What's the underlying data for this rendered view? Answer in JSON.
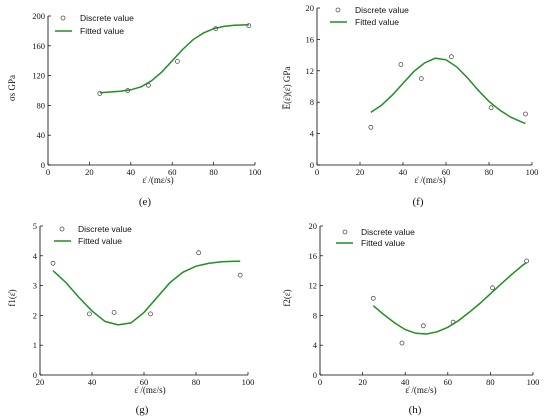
{
  "figure": {
    "panels": [
      {
        "id": "e",
        "label": "(e)"
      },
      {
        "id": "f",
        "label": "(f)"
      },
      {
        "id": "g",
        "label": "(g)"
      },
      {
        "id": "h",
        "label": "(h)"
      }
    ]
  },
  "colors": {
    "fit": "#1f8f1f",
    "marker": "#555555",
    "axis": "#000000",
    "background": "#ffffff"
  },
  "chart_data": [
    {
      "panel": "(e)",
      "type": "scatter",
      "xlabel": "ε̇ /(mε/s)",
      "ylabel": "σs GPa",
      "xlim": [
        0,
        100
      ],
      "ylim": [
        0,
        200
      ],
      "xticks": [
        0,
        20,
        40,
        60,
        80,
        100
      ],
      "yticks": [
        0,
        40,
        80,
        120,
        160,
        200
      ],
      "legend": [
        "Discrete value",
        "Fitted value"
      ],
      "legend_position": "top-left",
      "grid": false,
      "series": [
        {
          "name": "Discrete value",
          "type": "scatter",
          "x": [
            25,
            38.5,
            48.5,
            62.5,
            81,
            97
          ],
          "y": [
            96,
            100,
            107,
            139,
            183,
            187
          ]
        },
        {
          "name": "Fitted value",
          "type": "line",
          "x": [
            25,
            30,
            35,
            40,
            45,
            50,
            55,
            60,
            65,
            70,
            75,
            80,
            85,
            90,
            95,
            97
          ],
          "y": [
            97,
            98,
            99,
            101,
            105,
            113,
            125,
            140,
            155,
            168,
            177,
            183,
            186,
            187.5,
            188,
            188
          ]
        }
      ]
    },
    {
      "panel": "(f)",
      "type": "scatter",
      "xlabel": "ε̇ /(mε/s)",
      "ylabel": "E̅(ε̇)(ε̇) GPa",
      "xlim": [
        0,
        100
      ],
      "ylim": [
        0,
        20
      ],
      "xticks": [
        0,
        20,
        40,
        60,
        80,
        100
      ],
      "yticks": [
        0,
        4,
        8,
        12,
        16,
        20
      ],
      "legend": [
        "Discrete value",
        "Fitted value"
      ],
      "legend_position": "top-left",
      "grid": false,
      "series": [
        {
          "name": "Discrete value",
          "type": "scatter",
          "x": [
            25,
            39,
            48.5,
            62.5,
            81,
            97
          ],
          "y": [
            4.8,
            12.8,
            11,
            13.8,
            7.3,
            6.5
          ]
        },
        {
          "name": "Fitted value",
          "type": "line",
          "x": [
            25,
            30,
            35,
            40,
            45,
            50,
            55,
            60,
            65,
            70,
            75,
            80,
            85,
            90,
            95,
            97
          ],
          "y": [
            6.7,
            7.6,
            8.9,
            10.4,
            11.9,
            13.0,
            13.6,
            13.4,
            12.5,
            11.1,
            9.5,
            8.1,
            7.0,
            6.1,
            5.5,
            5.3
          ]
        }
      ]
    },
    {
      "panel": "(g)",
      "type": "scatter",
      "xlabel": "ε̇ /(mε/s)",
      "ylabel": "f1(ε̇)",
      "xlim": [
        20,
        100
      ],
      "ylim": [
        0,
        5
      ],
      "xticks": [
        20,
        40,
        60,
        80,
        100
      ],
      "yticks": [
        0,
        1,
        2,
        3,
        4,
        5
      ],
      "legend": [
        "Discrete value",
        "Fitted value"
      ],
      "legend_position": "top-left",
      "grid": false,
      "series": [
        {
          "name": "Discrete value",
          "type": "scatter",
          "x": [
            25,
            39,
            48.5,
            62.5,
            81,
            97
          ],
          "y": [
            3.75,
            2.05,
            2.1,
            2.05,
            4.1,
            3.35
          ]
        },
        {
          "name": "Fitted value",
          "type": "line",
          "x": [
            25,
            30,
            35,
            40,
            45,
            50,
            55,
            60,
            65,
            70,
            75,
            80,
            85,
            90,
            95,
            97
          ],
          "y": [
            3.5,
            3.1,
            2.6,
            2.15,
            1.8,
            1.68,
            1.75,
            2.1,
            2.6,
            3.1,
            3.45,
            3.65,
            3.75,
            3.8,
            3.82,
            3.82
          ]
        }
      ]
    },
    {
      "panel": "(h)",
      "type": "scatter",
      "xlabel": "ε̇ /(mε/s)",
      "ylabel": "f2(ε̇)",
      "xlim": [
        0,
        100
      ],
      "ylim": [
        0,
        20
      ],
      "xticks": [
        0,
        20,
        40,
        60,
        80,
        100
      ],
      "yticks": [
        0,
        4,
        8,
        12,
        16,
        20
      ],
      "legend": [
        "Discrete value",
        "Fitted value"
      ],
      "legend_position": "top-left",
      "grid": false,
      "series": [
        {
          "name": "Discrete value",
          "type": "scatter",
          "x": [
            25,
            38.5,
            48.5,
            62.5,
            81,
            97
          ],
          "y": [
            10.3,
            4.3,
            6.6,
            7.1,
            11.7,
            15.3
          ]
        },
        {
          "name": "Fitted value",
          "type": "line",
          "x": [
            25,
            30,
            35,
            40,
            45,
            50,
            55,
            60,
            65,
            70,
            75,
            80,
            85,
            90,
            95,
            97
          ],
          "y": [
            9.3,
            8.1,
            7.0,
            6.1,
            5.6,
            5.5,
            5.8,
            6.4,
            7.3,
            8.4,
            9.6,
            10.9,
            12.2,
            13.5,
            14.7,
            15.1
          ]
        }
      ]
    }
  ]
}
